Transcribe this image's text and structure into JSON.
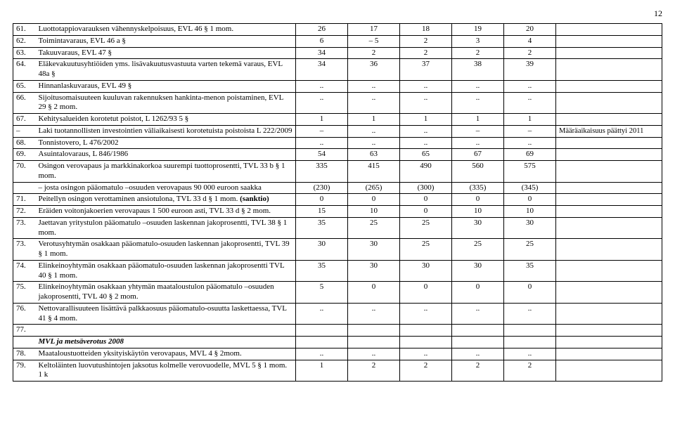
{
  "page_number": "12",
  "columns": {
    "num": "",
    "desc": "",
    "c1": "",
    "c2": "",
    "c3": "",
    "c4": "",
    "c5": "",
    "note": ""
  },
  "section_heading": "MVL ja metsäverotus 2008",
  "rows": [
    {
      "num": "61.",
      "desc": "Luottotappiovarauksen vähennyskelpoisuus, EVL 46 § 1 mom.",
      "v": [
        "26",
        "17",
        "18",
        "19",
        "20"
      ],
      "note": ""
    },
    {
      "num": "62.",
      "desc": "Toimintavaraus, EVL 46 a §",
      "v": [
        "6",
        "– 5",
        "2",
        "3",
        "4"
      ],
      "note": ""
    },
    {
      "num": "63.",
      "desc": "Takuuvaraus, EVL 47 §",
      "v": [
        "34",
        "2",
        "2",
        "2",
        "2"
      ],
      "note": ""
    },
    {
      "num": "64.",
      "desc": "Eläkevakuutusyhtiöiden yms. lisävakuutusvastuuta varten tekemä varaus, EVL 48a §",
      "v": [
        "34",
        "36",
        "37",
        "38",
        "39"
      ],
      "note": ""
    },
    {
      "num": "65.",
      "desc": "Hinnanlaskuvaraus, EVL 49 §",
      "v": [
        "..",
        "..",
        "..",
        "..",
        ".."
      ],
      "note": ""
    },
    {
      "num": "66.",
      "desc": "Sijoitusomaisuuteen kuuluvan rakennuksen hankinta-menon poistaminen, EVL 29 § 2 mom.",
      "v": [
        "..",
        "..",
        "..",
        "..",
        ".."
      ],
      "note": ""
    },
    {
      "num": "67.",
      "desc": "Kehitysalueiden korotetut poistot, L 1262/93 5 §",
      "v": [
        "1",
        "1",
        "1",
        "1",
        "1"
      ],
      "note": ""
    },
    {
      "num": "–",
      "desc": "Laki tuotannollisten investointien väliaikaisesti korotetuista poistoista L 222/2009",
      "v": [
        "–",
        "..",
        "..",
        "–",
        "–"
      ],
      "note": "Määräaikaisuus päättyi 2011"
    },
    {
      "num": "68.",
      "desc": "Tonnistovero, L 476/2002",
      "v": [
        "..",
        "..",
        "..",
        "..",
        ".."
      ],
      "note": ""
    },
    {
      "num": "69.",
      "desc": "Asuintalovaraus, L 846/1986",
      "v": [
        "54",
        "63",
        "65",
        "67",
        "69"
      ],
      "note": ""
    },
    {
      "num": "70.",
      "desc": "Osingon verovapaus ja markkinakorkoa suurempi tuottoprosentti, TVL 33 b § 1 mom.",
      "v": [
        "335",
        "415",
        "490",
        "560",
        "575"
      ],
      "note": ""
    },
    {
      "num": "",
      "desc": "– josta osingon pääomatulo –osuuden verovapaus 90 000 euroon saakka",
      "v": [
        "(230)",
        "(265)",
        "(300)",
        "(335)",
        "(345)"
      ],
      "note": ""
    },
    {
      "num": "71.",
      "desc": "Peitellyn osingon verottaminen ansiotulona, TVL 33 d § 1 mom. (sanktio)",
      "v": [
        "0",
        "0",
        "0",
        "0",
        "0"
      ],
      "note": "",
      "desc_html": "Peitellyn osingon verottaminen ansiotulona, TVL 33 d § 1 mom. <b>(sanktio)</b>"
    },
    {
      "num": "72.",
      "desc": "Eräiden voitonjakoerien verovapaus 1 500 euroon asti, TVL 33 d § 2 mom.",
      "v": [
        "15",
        "10",
        "0",
        "10",
        "10"
      ],
      "note": ""
    },
    {
      "num": "73.",
      "desc": "Jaettavan yritystulon pääomatulo –osuuden laskennan jakoprosentti, TVL 38 § 1 mom.",
      "v": [
        "35",
        "25",
        "25",
        "30",
        "30"
      ],
      "note": ""
    },
    {
      "num": "73.",
      "desc": "Verotusyhtymän osakkaan pääomatulo-osuuden laskennan jakoprosentti, TVL 39 § 1 mom.",
      "v": [
        "30",
        "30",
        "25",
        "25",
        "25"
      ],
      "note": ""
    },
    {
      "num": "74.",
      "desc": "Elinkeinoyhtymän osakkaan pääomatulo-osuuden laskennan jakoprosentti TVL 40 § 1 mom.",
      "v": [
        "35",
        "30",
        "30",
        "30",
        "35"
      ],
      "note": ""
    },
    {
      "num": "75.",
      "desc": "Elinkeinoyhtymän osakkaan yhtymän maataloustulon pääomatulo –osuuden jakoprosentti, TVL 40 § 2 mom.",
      "v": [
        "5",
        "0",
        "0",
        "0",
        "0"
      ],
      "note": ""
    },
    {
      "num": "76.",
      "desc": "Nettovarallisuuteen lisättävä palkkaosuus pääomatulo-osuutta laskettaessa, TVL 41 § 4 mom.",
      "v": [
        "..",
        "..",
        "..",
        "..",
        ".."
      ],
      "note": ""
    },
    {
      "num": "77.",
      "desc": "",
      "v": [
        "",
        "",
        "",
        "",
        ""
      ],
      "note": ""
    },
    {
      "num": "",
      "desc": "MVL ja metsäverotus 2008",
      "is_heading": true,
      "v": [
        "",
        "",
        "",
        "",
        ""
      ],
      "note": ""
    },
    {
      "num": "78.",
      "desc": "Maataloustuotteiden yksityiskäytön verovapaus, MVL 4 § 2mom.",
      "v": [
        "..",
        "..",
        "..",
        "..",
        ".."
      ],
      "note": ""
    },
    {
      "num": "79.",
      "desc": "Keltoläinten luovutushintojen jaksotus kolmelle verovuodelle, MVL 5 § 1 mom. 1 k",
      "v": [
        "1",
        "2",
        "2",
        "2",
        "2"
      ],
      "note": ""
    }
  ]
}
